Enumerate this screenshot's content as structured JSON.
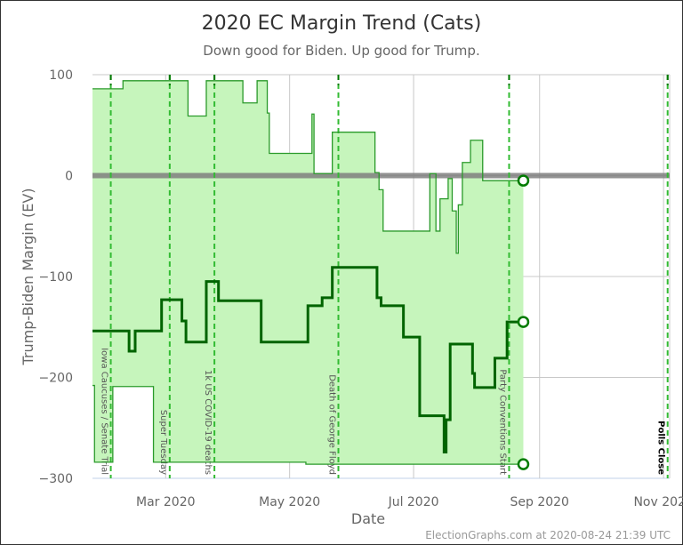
{
  "chart_data": {
    "type": "line",
    "title": "2020 EC Margin Trend (Cats)",
    "subtitle": "Down good for Biden. Up good for Trump.",
    "xlabel": "Date",
    "ylabel": "Trump-Biden Margin (EV)",
    "xlim": [
      "2020-01-25",
      "2020-11-04"
    ],
    "ylim": [
      -300,
      100
    ],
    "x_ticks": [
      {
        "date": "2020-03-01",
        "label": "Mar 2020"
      },
      {
        "date": "2020-05-01",
        "label": "May 2020"
      },
      {
        "date": "2020-07-01",
        "label": "Jul 2020"
      },
      {
        "date": "2020-09-01",
        "label": "Sep 2020"
      },
      {
        "date": "2020-11-01",
        "label": "Nov 2020"
      }
    ],
    "y_ticks": [
      100,
      0,
      -100,
      -200,
      -300
    ],
    "grid": true,
    "events": [
      {
        "date": "2020-02-03",
        "label": "Iowa Caucuses / Senate Trial"
      },
      {
        "date": "2020-03-03",
        "label": "Super Tuesday"
      },
      {
        "date": "2020-03-25",
        "label": "1k US COVID-19 deaths"
      },
      {
        "date": "2020-05-25",
        "label": "Death of George Floyd"
      },
      {
        "date": "2020-08-17",
        "label": "Party Conventions Start"
      },
      {
        "date": "2020-11-03",
        "label": "Polls Close"
      }
    ],
    "series": [
      {
        "role": "upper",
        "values": [
          [
            "2020-01-25",
            86
          ],
          [
            "2020-02-09",
            94
          ],
          [
            "2020-03-12",
            59
          ],
          [
            "2020-03-21",
            94
          ],
          [
            "2020-04-08",
            72
          ],
          [
            "2020-04-15",
            94
          ],
          [
            "2020-04-20",
            62
          ],
          [
            "2020-04-21",
            22
          ],
          [
            "2020-05-12",
            61
          ],
          [
            "2020-05-13",
            2
          ],
          [
            "2020-05-22",
            43
          ],
          [
            "2020-06-12",
            3
          ],
          [
            "2020-06-14",
            -14
          ],
          [
            "2020-06-16",
            -55
          ],
          [
            "2020-07-09",
            2
          ],
          [
            "2020-07-12",
            -55
          ],
          [
            "2020-07-14",
            -23
          ],
          [
            "2020-07-18",
            -3
          ],
          [
            "2020-07-20",
            -35
          ],
          [
            "2020-07-22",
            -77
          ],
          [
            "2020-07-23",
            -29
          ],
          [
            "2020-07-25",
            13
          ],
          [
            "2020-07-29",
            35
          ],
          [
            "2020-08-04",
            -5
          ],
          [
            "2020-08-24",
            -5
          ]
        ]
      },
      {
        "role": "expected",
        "values": [
          [
            "2020-01-25",
            -154
          ],
          [
            "2020-02-12",
            -174
          ],
          [
            "2020-02-15",
            -154
          ],
          [
            "2020-02-28",
            -123
          ],
          [
            "2020-03-09",
            -144
          ],
          [
            "2020-03-11",
            -165
          ],
          [
            "2020-03-21",
            -105
          ],
          [
            "2020-03-27",
            -124
          ],
          [
            "2020-04-17",
            -165
          ],
          [
            "2020-05-10",
            -129
          ],
          [
            "2020-05-17",
            -121
          ],
          [
            "2020-05-22",
            -91
          ],
          [
            "2020-06-13",
            -121
          ],
          [
            "2020-06-15",
            -129
          ],
          [
            "2020-06-26",
            -160
          ],
          [
            "2020-07-04",
            -238
          ],
          [
            "2020-07-16",
            -274
          ],
          [
            "2020-07-17",
            -242
          ],
          [
            "2020-07-19",
            -167
          ],
          [
            "2020-07-30",
            -196
          ],
          [
            "2020-07-31",
            -210
          ],
          [
            "2020-08-10",
            -181
          ],
          [
            "2020-08-16",
            -145
          ],
          [
            "2020-08-24",
            -145
          ]
        ]
      },
      {
        "role": "lower",
        "values": [
          [
            "2020-01-25",
            -208
          ],
          [
            "2020-01-26",
            -284
          ],
          [
            "2020-02-04",
            -209
          ],
          [
            "2020-02-24",
            -284
          ],
          [
            "2020-05-09",
            -286
          ],
          [
            "2020-08-24",
            -286
          ]
        ]
      }
    ],
    "colors": {
      "fill": "#c6f5bc",
      "thin_line": "#2a9a2a",
      "thick_line": "#006400",
      "event_line": "#33bb33",
      "event_line_dark": "#007700",
      "zero_line": "#808080",
      "grid": "#c8c8c8"
    }
  },
  "footer": "ElectionGraphs.com at 2020-08-24 21:39 UTC"
}
